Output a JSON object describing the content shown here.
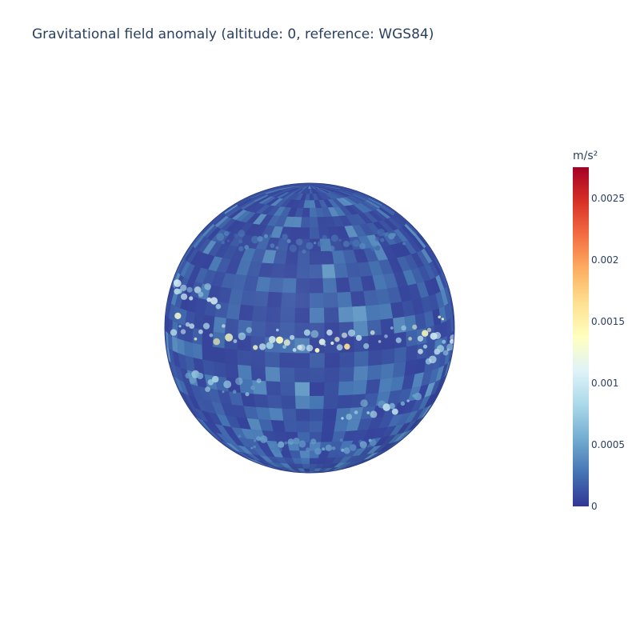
{
  "chart_data": {
    "type": "heatmap",
    "projection": "orthographic-globe",
    "title": "Gravitational field anomaly (altitude: 0, reference: WGS84)",
    "colorbar": {
      "title": "m/s²",
      "range": [
        0,
        0.00275
      ],
      "ticks": [
        {
          "value": 0.0025,
          "label": "0.0025"
        },
        {
          "value": 0.002,
          "label": "0.002"
        },
        {
          "value": 0.0015,
          "label": "0.0015"
        },
        {
          "value": 0.001,
          "label": "0.001"
        },
        {
          "value": 0.0005,
          "label": "0.0005"
        },
        {
          "value": 0,
          "label": "0"
        }
      ],
      "colorscale": [
        [
          0.0,
          "#313695"
        ],
        [
          0.1,
          "#4575b4"
        ],
        [
          0.2,
          "#74add1"
        ],
        [
          0.3,
          "#abd9e9"
        ],
        [
          0.4,
          "#e0f3f8"
        ],
        [
          0.5,
          "#ffffbf"
        ],
        [
          0.6,
          "#fee090"
        ],
        [
          0.7,
          "#fdae61"
        ],
        [
          0.8,
          "#f46d43"
        ],
        [
          0.9,
          "#d73027"
        ],
        [
          1.0,
          "#a50026"
        ]
      ]
    },
    "bands": [
      {
        "lat": 45,
        "lon_from": -60,
        "lon_to": 60,
        "value": 0.00035
      },
      {
        "lat": 20,
        "lon_from": -80,
        "lon_to": -40,
        "value": 0.0009
      },
      {
        "lat": 5,
        "lon_from": -70,
        "lon_to": 70,
        "value": 0.0012
      },
      {
        "lat": 3,
        "lon_from": -15,
        "lon_to": 15,
        "value": 0.0015
      },
      {
        "lat": -15,
        "lon_from": -60,
        "lon_to": -20,
        "value": 0.0007
      },
      {
        "lat": -25,
        "lon_from": 15,
        "lon_to": 55,
        "value": 0.0008
      },
      {
        "lat": -5,
        "lon_from": 50,
        "lon_to": 85,
        "value": 0.001
      },
      {
        "lat": -45,
        "lon_from": -40,
        "lon_to": 40,
        "value": 0.0005
      }
    ]
  }
}
